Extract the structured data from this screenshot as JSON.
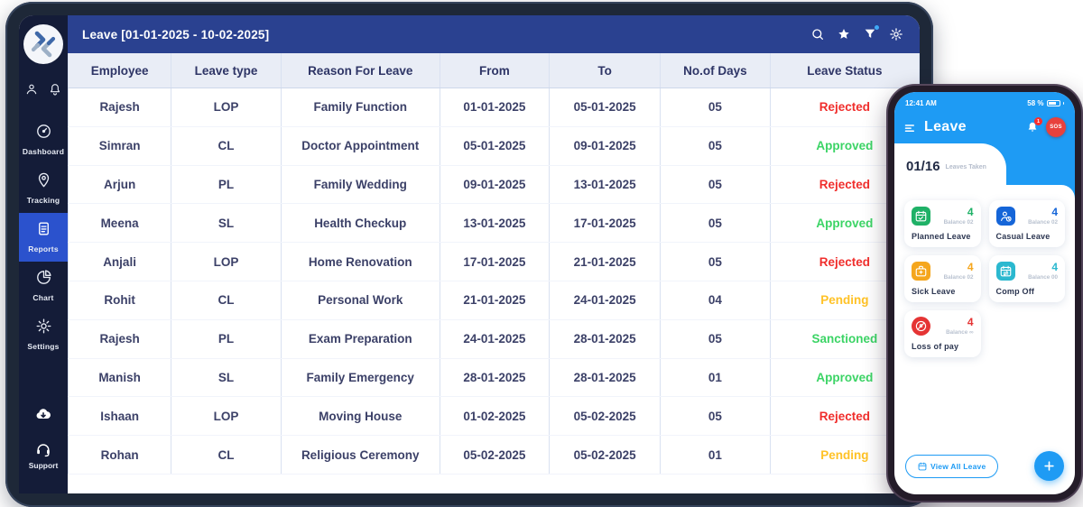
{
  "colors": {
    "appbar": "#2a4190",
    "sidebar": "#141c38",
    "sidebar_active": "#2b52cd",
    "phone_blue": "#1e9bf4",
    "status_colors": {
      "Rejected": "#f02e2c",
      "Approved": "#3bd465",
      "Pending": "#ffc226",
      "Sanctioned": "#3bd465"
    }
  },
  "tablet": {
    "appbar": {
      "title": "Leave [01-01-2025 - 10-02-2025]",
      "icons": [
        "search-icon",
        "star-icon",
        "filter-icon",
        "settings-icon"
      ]
    },
    "sidebar": {
      "nav": [
        {
          "label": "Dashboard",
          "icon": "gauge",
          "active": false
        },
        {
          "label": "Tracking",
          "icon": "pin",
          "active": false
        },
        {
          "label": "Reports",
          "icon": "report",
          "active": true
        },
        {
          "label": "Chart",
          "icon": "pie",
          "active": false
        },
        {
          "label": "Settings",
          "icon": "gear",
          "active": false
        }
      ],
      "support_label": "Support"
    },
    "table": {
      "columns": [
        "Employee",
        "Leave type",
        "Reason For Leave",
        "From",
        "To",
        "No.of Days",
        "Leave Status"
      ],
      "rows": [
        {
          "employee": "Rajesh",
          "type": "LOP",
          "reason": "Family Function",
          "from": "01-01-2025",
          "to": "05-01-2025",
          "days": "05",
          "status": "Rejected"
        },
        {
          "employee": "Simran",
          "type": "CL",
          "reason": "Doctor Appointment",
          "from": "05-01-2025",
          "to": "09-01-2025",
          "days": "05",
          "status": "Approved"
        },
        {
          "employee": "Arjun",
          "type": "PL",
          "reason": "Family Wedding",
          "from": "09-01-2025",
          "to": "13-01-2025",
          "days": "05",
          "status": "Rejected"
        },
        {
          "employee": "Meena",
          "type": "SL",
          "reason": "Health Checkup",
          "from": "13-01-2025",
          "to": "17-01-2025",
          "days": "05",
          "status": "Approved"
        },
        {
          "employee": "Anjali",
          "type": "LOP",
          "reason": "Home Renovation",
          "from": "17-01-2025",
          "to": "21-01-2025",
          "days": "05",
          "status": "Rejected"
        },
        {
          "employee": "Rohit",
          "type": "CL",
          "reason": "Personal Work",
          "from": "21-01-2025",
          "to": "24-01-2025",
          "days": "04",
          "status": "Pending"
        },
        {
          "employee": "Rajesh",
          "type": "PL",
          "reason": "Exam Preparation",
          "from": "24-01-2025",
          "to": "28-01-2025",
          "days": "05",
          "status": "Sanctioned"
        },
        {
          "employee": "Manish",
          "type": "SL",
          "reason": "Family Emergency",
          "from": "28-01-2025",
          "to": "28-01-2025",
          "days": "01",
          "status": "Approved"
        },
        {
          "employee": "Ishaan",
          "type": "LOP",
          "reason": "Moving House",
          "from": "01-02-2025",
          "to": "05-02-2025",
          "days": "05",
          "status": "Rejected"
        },
        {
          "employee": "Rohan",
          "type": "CL",
          "reason": "Religious Ceremony",
          "from": "05-02-2025",
          "to": "05-02-2025",
          "days": "01",
          "status": "Pending"
        }
      ]
    }
  },
  "phone": {
    "status_bar": {
      "time": "12:41 AM",
      "battery": "58 %"
    },
    "header": {
      "title": "Leave",
      "notification_count": "1",
      "sos_label": "SOS"
    },
    "stats": {
      "taken": "01/16",
      "label": "Leaves Taken"
    },
    "cards": [
      {
        "label": "Planned Leave",
        "count": "4",
        "balance": "Balance 02",
        "color": "#1fb167",
        "icon": "calendar-check"
      },
      {
        "label": "Casual Leave",
        "count": "4",
        "balance": "Balance 02",
        "color": "#1565d8",
        "icon": "person-clock"
      },
      {
        "label": "Sick Leave",
        "count": "4",
        "balance": "Balance 02",
        "color": "#f5a61d",
        "icon": "medkit"
      },
      {
        "label": "Comp Off",
        "count": "4",
        "balance": "Balance 00",
        "color": "#2bb8cf",
        "icon": "calendar-sync"
      },
      {
        "label": "Loss of pay",
        "count": "4",
        "balance": "Balance ∞",
        "color": "#e53434",
        "icon": "no-money"
      }
    ],
    "footer": {
      "view_all_label": "View All Leave"
    }
  }
}
